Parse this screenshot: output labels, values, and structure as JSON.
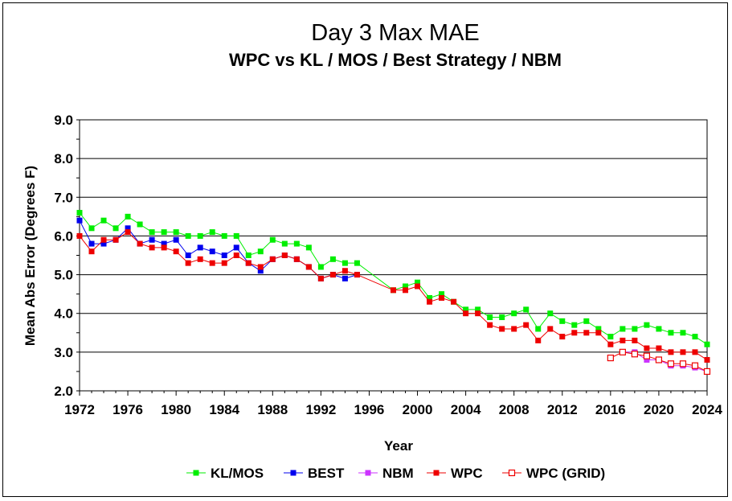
{
  "chart_data": {
    "type": "line",
    "title": "Day 3 Max MAE",
    "subtitle": "WPC vs KL / MOS / Best Strategy / NBM",
    "xlabel": "Year",
    "ylabel": "Mean Abs Error (Degrees F)",
    "xlim": [
      1972,
      2024
    ],
    "ylim": [
      2.0,
      9.0
    ],
    "x_ticks": [
      "1972",
      "1976",
      "1980",
      "1984",
      "1988",
      "1992",
      "1996",
      "2000",
      "2004",
      "2008",
      "2012",
      "2016",
      "2020",
      "2024"
    ],
    "y_ticks": [
      "2.0",
      "3.0",
      "4.0",
      "5.0",
      "6.0",
      "7.0",
      "8.0",
      "9.0"
    ],
    "grid": "horizontal",
    "legend": "bottom",
    "series": [
      {
        "name": "KL/MOS",
        "color": "#00ee00",
        "marker": "filled-square",
        "points": [
          [
            1972,
            6.6
          ],
          [
            1973,
            6.2
          ],
          [
            1974,
            6.4
          ],
          [
            1975,
            6.2
          ],
          [
            1976,
            6.5
          ],
          [
            1977,
            6.3
          ],
          [
            1978,
            6.1
          ],
          [
            1979,
            6.1
          ],
          [
            1980,
            6.1
          ],
          [
            1981,
            6.0
          ],
          [
            1982,
            6.0
          ],
          [
            1983,
            6.1
          ],
          [
            1984,
            6.0
          ],
          [
            1985,
            6.0
          ],
          [
            1986,
            5.5
          ],
          [
            1987,
            5.6
          ],
          [
            1988,
            5.9
          ],
          [
            1989,
            5.8
          ],
          [
            1990,
            5.8
          ],
          [
            1991,
            5.7
          ],
          [
            1992,
            5.2
          ],
          [
            1993,
            5.4
          ],
          [
            1994,
            5.3
          ],
          [
            1995,
            5.3
          ],
          [
            1998,
            4.6
          ],
          [
            1999,
            4.7
          ],
          [
            2000,
            4.8
          ],
          [
            2001,
            4.4
          ],
          [
            2002,
            4.5
          ],
          [
            2003,
            4.3
          ],
          [
            2004,
            4.1
          ],
          [
            2005,
            4.1
          ],
          [
            2006,
            3.9
          ],
          [
            2007,
            3.9
          ],
          [
            2008,
            4.0
          ],
          [
            2009,
            4.1
          ],
          [
            2010,
            3.6
          ],
          [
            2011,
            4.0
          ],
          [
            2012,
            3.8
          ],
          [
            2013,
            3.7
          ],
          [
            2014,
            3.8
          ],
          [
            2015,
            3.6
          ],
          [
            2016,
            3.4
          ],
          [
            2017,
            3.6
          ],
          [
            2018,
            3.6
          ],
          [
            2019,
            3.7
          ],
          [
            2020,
            3.6
          ],
          [
            2021,
            3.5
          ],
          [
            2022,
            3.5
          ],
          [
            2023,
            3.4
          ],
          [
            2024,
            3.2
          ]
        ]
      },
      {
        "name": "BEST",
        "color": "#0000ee",
        "marker": "filled-square",
        "points": [
          [
            1972,
            6.4
          ],
          [
            1973,
            5.8
          ],
          [
            1974,
            5.8
          ],
          [
            1975,
            5.9
          ],
          [
            1976,
            6.2
          ],
          [
            1977,
            5.8
          ],
          [
            1978,
            5.9
          ],
          [
            1979,
            5.8
          ],
          [
            1980,
            5.9
          ],
          [
            1981,
            5.5
          ],
          [
            1982,
            5.7
          ],
          [
            1983,
            5.6
          ],
          [
            1984,
            5.5
          ],
          [
            1985,
            5.7
          ],
          [
            1986,
            5.3
          ],
          [
            1987,
            5.1
          ],
          [
            1988,
            5.4
          ],
          [
            1989,
            5.5
          ],
          [
            1990,
            5.4
          ],
          [
            1991,
            5.2
          ],
          [
            1992,
            4.9
          ],
          [
            1993,
            5.0
          ],
          [
            1994,
            4.9
          ],
          [
            1995,
            5.0
          ]
        ]
      },
      {
        "name": "NBM",
        "color": "#cc33ff",
        "marker": "filled-square",
        "points": [
          [
            2017,
            3.0
          ],
          [
            2018,
            3.0
          ],
          [
            2019,
            2.8
          ],
          [
            2020,
            2.8
          ],
          [
            2021,
            2.65
          ],
          [
            2022,
            2.65
          ],
          [
            2023,
            2.6
          ],
          [
            2024,
            2.5
          ]
        ]
      },
      {
        "name": "WPC",
        "color": "#ee0000",
        "marker": "filled-square",
        "points": [
          [
            1972,
            6.0
          ],
          [
            1973,
            5.6
          ],
          [
            1974,
            5.9
          ],
          [
            1975,
            5.9
          ],
          [
            1976,
            6.1
          ],
          [
            1977,
            5.8
          ],
          [
            1978,
            5.7
          ],
          [
            1979,
            5.7
          ],
          [
            1980,
            5.6
          ],
          [
            1981,
            5.3
          ],
          [
            1982,
            5.4
          ],
          [
            1983,
            5.3
          ],
          [
            1984,
            5.3
          ],
          [
            1985,
            5.5
          ],
          [
            1986,
            5.3
          ],
          [
            1987,
            5.2
          ],
          [
            1988,
            5.4
          ],
          [
            1989,
            5.5
          ],
          [
            1990,
            5.4
          ],
          [
            1991,
            5.2
          ],
          [
            1992,
            4.9
          ],
          [
            1993,
            5.0
          ],
          [
            1994,
            5.1
          ],
          [
            1995,
            5.0
          ],
          [
            1998,
            4.6
          ],
          [
            1999,
            4.6
          ],
          [
            2000,
            4.7
          ],
          [
            2001,
            4.3
          ],
          [
            2002,
            4.4
          ],
          [
            2003,
            4.3
          ],
          [
            2004,
            4.0
          ],
          [
            2005,
            4.0
          ],
          [
            2006,
            3.7
          ],
          [
            2007,
            3.6
          ],
          [
            2008,
            3.6
          ],
          [
            2009,
            3.7
          ],
          [
            2010,
            3.3
          ],
          [
            2011,
            3.6
          ],
          [
            2012,
            3.4
          ],
          [
            2013,
            3.5
          ],
          [
            2014,
            3.5
          ],
          [
            2015,
            3.5
          ],
          [
            2016,
            3.2
          ],
          [
            2017,
            3.3
          ],
          [
            2018,
            3.3
          ],
          [
            2019,
            3.1
          ],
          [
            2020,
            3.1
          ],
          [
            2021,
            3.0
          ],
          [
            2022,
            3.0
          ],
          [
            2023,
            3.0
          ],
          [
            2024,
            2.8
          ]
        ]
      },
      {
        "name": "WPC (GRID)",
        "color": "#ee0000",
        "marker": "open-square",
        "points": [
          [
            2016,
            2.85
          ],
          [
            2017,
            3.0
          ],
          [
            2018,
            2.95
          ],
          [
            2019,
            2.9
          ],
          [
            2020,
            2.8
          ],
          [
            2021,
            2.7
          ],
          [
            2022,
            2.7
          ],
          [
            2023,
            2.65
          ],
          [
            2024,
            2.5
          ]
        ]
      }
    ]
  }
}
